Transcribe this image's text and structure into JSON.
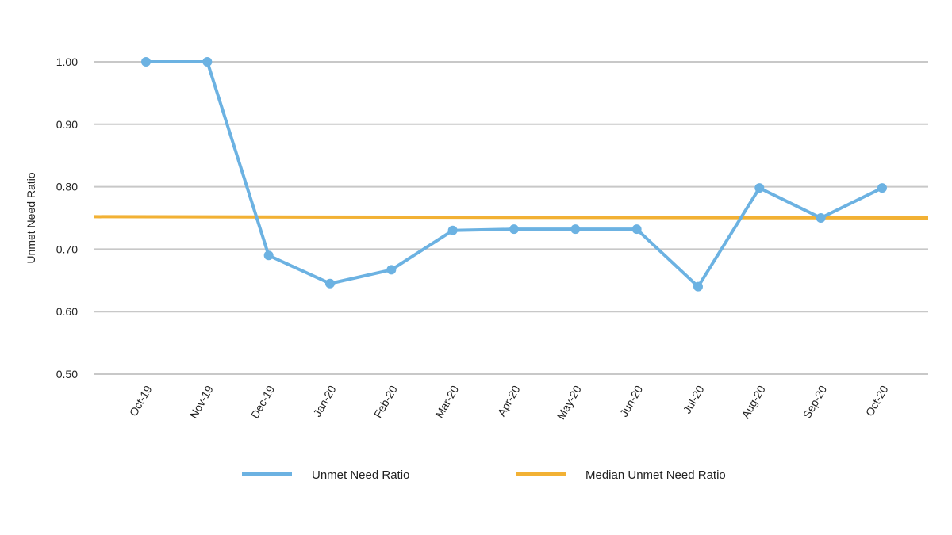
{
  "chart_data": {
    "type": "line",
    "title": "",
    "xlabel": "",
    "ylabel": "Unmet Need Ratio",
    "categories": [
      "Oct-19",
      "Nov-19",
      "Dec-19",
      "Jan-20",
      "Feb-20",
      "Mar-20",
      "Apr-20",
      "May-20",
      "Jun-20",
      "Jul-20",
      "Aug-20",
      "Sep-20",
      "Oct-20"
    ],
    "y_ticks": [
      "1.00",
      "0.90",
      "0.80",
      "0.70",
      "0.60",
      "0.50"
    ],
    "ylim": [
      0.5,
      1.0
    ],
    "grid": true,
    "legend_position": "bottom",
    "series": [
      {
        "name": "Unmet Need Ratio",
        "color": "#6cb2e2",
        "markers": true,
        "values": [
          1.0,
          1.0,
          0.69,
          0.645,
          0.667,
          0.73,
          0.732,
          0.732,
          0.732,
          0.64,
          0.798,
          0.75,
          0.798
        ]
      },
      {
        "name": "Median Unmet Need Ratio",
        "color": "#f2b134",
        "markers": false,
        "start_value": 0.752,
        "end_value": 0.75
      }
    ]
  }
}
